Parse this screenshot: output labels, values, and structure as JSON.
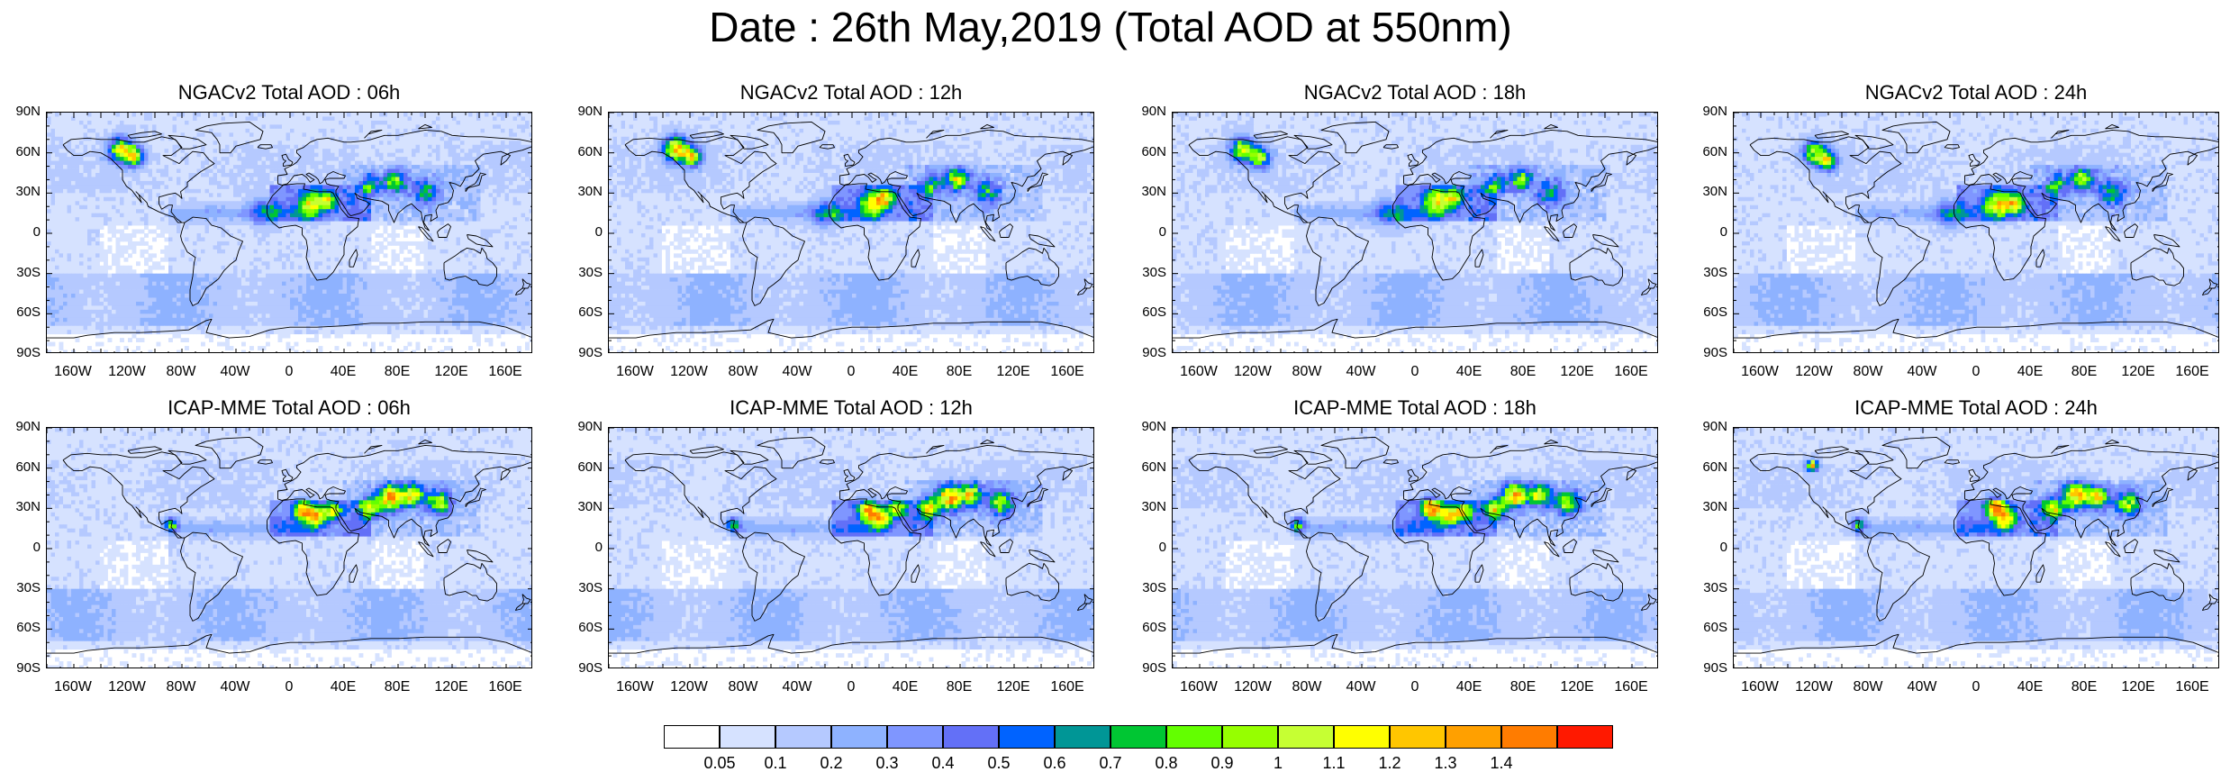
{
  "title": "Date : 26th May,2019 (Total AOD at 550nm)",
  "latitude_ticks": [
    "90N",
    "60N",
    "30N",
    "0",
    "30S",
    "60S",
    "90S"
  ],
  "longitude_ticks": [
    "160W",
    "120W",
    "80W",
    "40W",
    "0",
    "40E",
    "80E",
    "120E",
    "160E"
  ],
  "panels": [
    {
      "title": "NGACv2 Total AOD : 06h",
      "model": "NGACv2",
      "forecast_hour": "06h"
    },
    {
      "title": "NGACv2 Total AOD : 12h",
      "model": "NGACv2",
      "forecast_hour": "12h"
    },
    {
      "title": "NGACv2 Total AOD : 18h",
      "model": "NGACv2",
      "forecast_hour": "18h"
    },
    {
      "title": "NGACv2 Total AOD : 24h",
      "model": "NGACv2",
      "forecast_hour": "24h"
    },
    {
      "title": "ICAP-MME Total AOD : 06h",
      "model": "ICAP-MME",
      "forecast_hour": "06h"
    },
    {
      "title": "ICAP-MME Total AOD : 12h",
      "model": "ICAP-MME",
      "forecast_hour": "12h"
    },
    {
      "title": "ICAP-MME Total AOD : 18h",
      "model": "ICAP-MME",
      "forecast_hour": "18h"
    },
    {
      "title": "ICAP-MME Total AOD : 24h",
      "model": "ICAP-MME",
      "forecast_hour": "24h"
    }
  ],
  "colorbar": {
    "labels": [
      "0.05",
      "0.1",
      "0.2",
      "0.3",
      "0.4",
      "0.5",
      "0.6",
      "0.7",
      "0.8",
      "0.9",
      "1",
      "1.1",
      "1.2",
      "1.3",
      "1.4"
    ],
    "colors": [
      "#ffffff",
      "#d6e2ff",
      "#b5c9ff",
      "#8eb2ff",
      "#7f96ff",
      "#6370f7",
      "#0063ff",
      "#009696",
      "#00c633",
      "#63ff00",
      "#96ff00",
      "#c6ff33",
      "#ffff00",
      "#ffc600",
      "#ffa000",
      "#ff7c00",
      "#ff1900"
    ]
  }
}
